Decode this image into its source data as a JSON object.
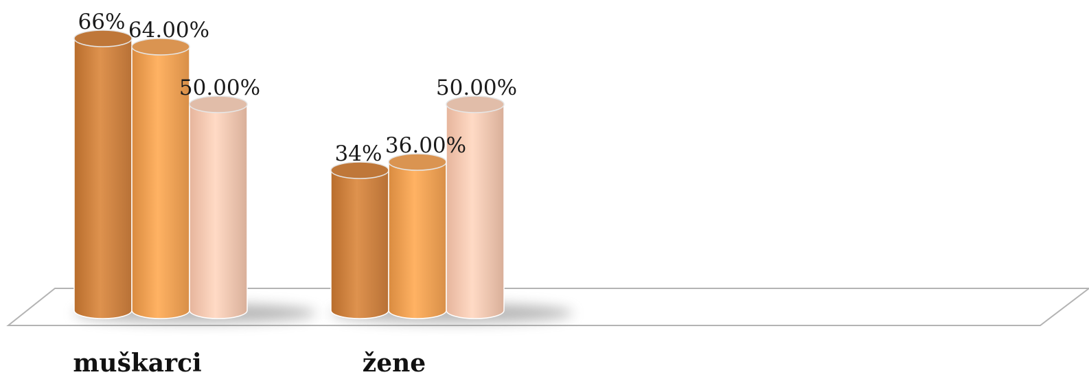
{
  "chart_data": {
    "type": "bar",
    "style": "3d-cylinder",
    "categories": [
      "muškarci",
      "žene"
    ],
    "series": [
      {
        "values": [
          66,
          34
        ],
        "labels": [
          "66%",
          "34%"
        ],
        "color": "#D4843F"
      },
      {
        "values": [
          64,
          36
        ],
        "labels": [
          "64.00%",
          "36.00%"
        ],
        "color": "#F2A55A"
      },
      {
        "values": [
          50,
          50
        ],
        "labels": [
          "50.00%",
          "50.00%"
        ],
        "color": "#FAD2BC"
      }
    ],
    "ylim": [
      0,
      100
    ],
    "grid": false,
    "legend": "none",
    "title": "",
    "xlabel": "",
    "ylabel": ""
  }
}
